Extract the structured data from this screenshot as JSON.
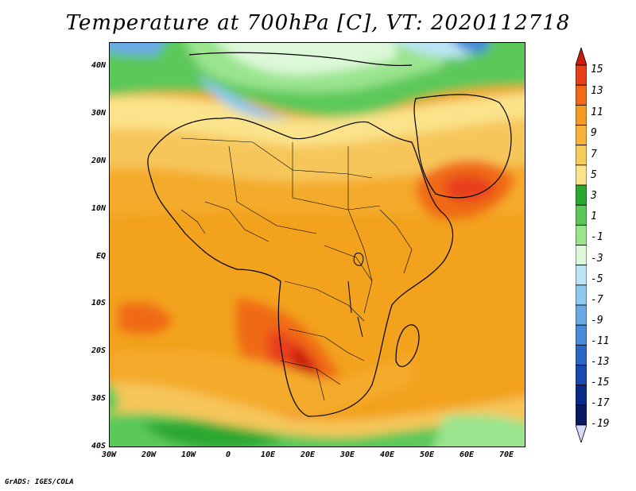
{
  "title": "Temperature at 700hPa [C], VT: 2020112718",
  "credit": "GrADS: IGES/COLA",
  "map": {
    "projection": "latlon",
    "lon_range": [
      -30,
      75
    ],
    "lat_range": [
      -40,
      45
    ],
    "lat_tick_labels": [
      "40N",
      "30N",
      "20N",
      "10N",
      "EQ",
      "10S",
      "20S",
      "30S",
      "40S"
    ],
    "lon_tick_labels": [
      "30W",
      "20W",
      "10W",
      "0",
      "10E",
      "20E",
      "30E",
      "40E",
      "50E",
      "60E",
      "70E"
    ]
  },
  "colorbar": {
    "labels": [
      "15",
      "13",
      "11",
      "9",
      "7",
      "5",
      "3",
      "1",
      "-1",
      "-3",
      "-5",
      "-7",
      "-9",
      "-11",
      "-13",
      "-15",
      "-17",
      "-19"
    ],
    "colors": [
      "#c81e10",
      "#e8401a",
      "#f06a18",
      "#f59a24",
      "#f8b23a",
      "#f6cc5a",
      "#fae38a",
      "#2aa830",
      "#5cc85a",
      "#9ae48e",
      "#dcf8d8",
      "#bde4f5",
      "#90c8ee",
      "#6aaae4",
      "#4a8ad8",
      "#2a66c8",
      "#1848b0",
      "#0a2a8a",
      "#081a60",
      "#d8d8f8"
    ]
  }
}
